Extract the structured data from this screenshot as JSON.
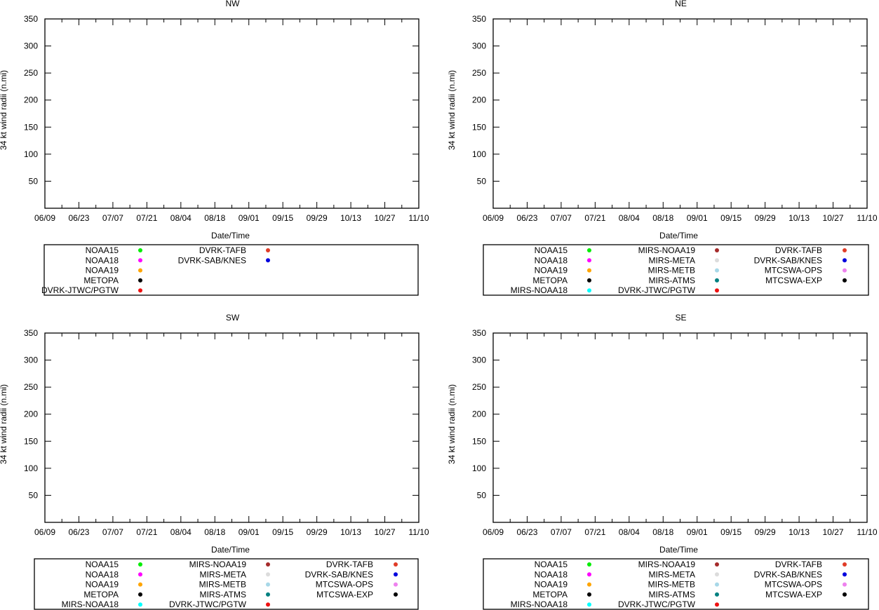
{
  "chart_data": [
    {
      "type": "scatter",
      "title": "NW",
      "xlabel": "Date/Time",
      "ylabel": "34 kt wind radii (n.mi)",
      "x_ticks": [
        "06/09",
        "06/23",
        "07/07",
        "07/21",
        "08/04",
        "08/18",
        "09/01",
        "09/15",
        "09/29",
        "10/13",
        "10/27",
        "11/10"
      ],
      "y_ticks": [
        50,
        100,
        150,
        200,
        250,
        300,
        350
      ],
      "ylim": [
        0,
        350
      ],
      "series": [],
      "legend": {
        "columns": [
          [
            {
              "name": "NOAA15",
              "color": "#00ee00"
            },
            {
              "name": "NOAA18",
              "color": "#ff00ff"
            },
            {
              "name": "NOAA19",
              "color": "#ffa500"
            },
            {
              "name": "METOPA",
              "color": "#000000"
            },
            {
              "name": "DVRK-JTWC/PGTW",
              "color": "#ee1111"
            }
          ],
          [
            {
              "name": "DVRK-TAFB",
              "color": "#e03c28"
            },
            {
              "name": "DVRK-SAB/KNES",
              "color": "#0000dd"
            }
          ]
        ]
      }
    },
    {
      "type": "scatter",
      "title": "NE",
      "xlabel": "Date/Time",
      "ylabel": "34 kt wind radii (n.mi)",
      "x_ticks": [
        "06/09",
        "06/23",
        "07/07",
        "07/21",
        "08/04",
        "08/18",
        "09/01",
        "09/15",
        "09/29",
        "10/13",
        "10/27",
        "11/10"
      ],
      "y_ticks": [
        50,
        100,
        150,
        200,
        250,
        300,
        350
      ],
      "ylim": [
        0,
        350
      ],
      "series": [],
      "legend": {
        "columns": [
          [
            {
              "name": "NOAA15",
              "color": "#00ee00"
            },
            {
              "name": "NOAA18",
              "color": "#ff00ff"
            },
            {
              "name": "NOAA19",
              "color": "#ffa500"
            },
            {
              "name": "METOPA",
              "color": "#000000"
            },
            {
              "name": "MIRS-NOAA18",
              "color": "#00ffff"
            }
          ],
          [
            {
              "name": "MIRS-NOAA19",
              "color": "#a52a2a"
            },
            {
              "name": "MIRS-META",
              "color": "#dcdcdc"
            },
            {
              "name": "MIRS-METB",
              "color": "#a8d8e8"
            },
            {
              "name": "MIRS-ATMS",
              "color": "#008080"
            },
            {
              "name": "DVRK-JTWC/PGTW",
              "color": "#ee1111"
            }
          ],
          [
            {
              "name": "DVRK-TAFB",
              "color": "#e03c28"
            },
            {
              "name": "DVRK-SAB/KNES",
              "color": "#0000dd"
            },
            {
              "name": "MTCSWA-OPS",
              "color": "#ee82ee"
            },
            {
              "name": "MTCSWA-EXP",
              "color": "#000000"
            }
          ]
        ]
      }
    },
    {
      "type": "scatter",
      "title": "SW",
      "xlabel": "Date/Time",
      "ylabel": "34 kt wind radii (n.mi)",
      "x_ticks": [
        "06/09",
        "06/23",
        "07/07",
        "07/21",
        "08/04",
        "08/18",
        "09/01",
        "09/15",
        "09/29",
        "10/13",
        "10/27",
        "11/10"
      ],
      "y_ticks": [
        50,
        100,
        150,
        200,
        250,
        300,
        350
      ],
      "ylim": [
        0,
        350
      ],
      "series": [],
      "legend": {
        "columns": [
          [
            {
              "name": "NOAA15",
              "color": "#00ee00"
            },
            {
              "name": "NOAA18",
              "color": "#ff00ff"
            },
            {
              "name": "NOAA19",
              "color": "#ffa500"
            },
            {
              "name": "METOPA",
              "color": "#000000"
            },
            {
              "name": "MIRS-NOAA18",
              "color": "#00ffff"
            }
          ],
          [
            {
              "name": "MIRS-NOAA19",
              "color": "#a52a2a"
            },
            {
              "name": "MIRS-META",
              "color": "#dcdcdc"
            },
            {
              "name": "MIRS-METB",
              "color": "#a8d8e8"
            },
            {
              "name": "MIRS-ATMS",
              "color": "#008080"
            },
            {
              "name": "DVRK-JTWC/PGTW",
              "color": "#ee1111"
            }
          ],
          [
            {
              "name": "DVRK-TAFB",
              "color": "#e03c28"
            },
            {
              "name": "DVRK-SAB/KNES",
              "color": "#0000dd"
            },
            {
              "name": "MTCSWA-OPS",
              "color": "#ee82ee"
            },
            {
              "name": "MTCSWA-EXP",
              "color": "#000000"
            }
          ]
        ]
      }
    },
    {
      "type": "scatter",
      "title": "SE",
      "xlabel": "Date/Time",
      "ylabel": "34 kt wind radii (n.mi)",
      "x_ticks": [
        "06/09",
        "06/23",
        "07/07",
        "07/21",
        "08/04",
        "08/18",
        "09/01",
        "09/15",
        "09/29",
        "10/13",
        "10/27",
        "11/10"
      ],
      "y_ticks": [
        50,
        100,
        150,
        200,
        250,
        300,
        350
      ],
      "ylim": [
        0,
        350
      ],
      "series": [],
      "legend": {
        "columns": [
          [
            {
              "name": "NOAA15",
              "color": "#00ee00"
            },
            {
              "name": "NOAA18",
              "color": "#ff00ff"
            },
            {
              "name": "NOAA19",
              "color": "#ffa500"
            },
            {
              "name": "METOPA",
              "color": "#000000"
            },
            {
              "name": "MIRS-NOAA18",
              "color": "#00ffff"
            }
          ],
          [
            {
              "name": "MIRS-NOAA19",
              "color": "#a52a2a"
            },
            {
              "name": "MIRS-META",
              "color": "#dcdcdc"
            },
            {
              "name": "MIRS-METB",
              "color": "#a8d8e8"
            },
            {
              "name": "MIRS-ATMS",
              "color": "#008080"
            },
            {
              "name": "DVRK-JTWC/PGTW",
              "color": "#ee1111"
            }
          ],
          [
            {
              "name": "DVRK-TAFB",
              "color": "#e03c28"
            },
            {
              "name": "DVRK-SAB/KNES",
              "color": "#0000dd"
            },
            {
              "name": "MTCSWA-OPS",
              "color": "#ee82ee"
            },
            {
              "name": "MTCSWA-EXP",
              "color": "#000000"
            }
          ]
        ]
      }
    }
  ]
}
